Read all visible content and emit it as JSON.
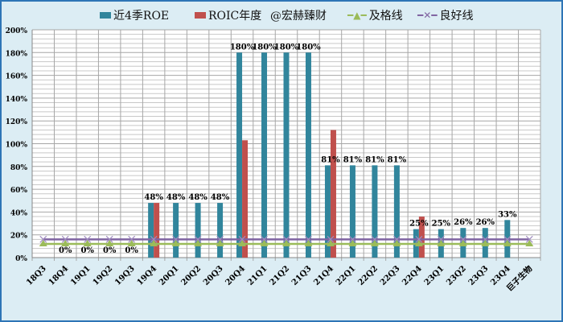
{
  "chart_data": {
    "type": "bar",
    "categories": [
      "18Q3",
      "18Q4",
      "19Q1",
      "19Q2",
      "19Q3",
      "19Q4",
      "20Q1",
      "20Q2",
      "20Q3",
      "20Q4",
      "21Q1",
      "21Q2",
      "21Q3",
      "21Q4",
      "22Q1",
      "22Q2",
      "22Q3",
      "22Q4",
      "23Q1",
      "23Q2",
      "23Q3",
      "23Q4",
      "巨子生物"
    ],
    "series": [
      {
        "name": "近4季ROE",
        "kind": "bar",
        "color": "#31859c",
        "values": [
          null,
          0,
          0,
          0,
          0,
          48,
          48,
          48,
          48,
          180,
          180,
          180,
          180,
          81,
          81,
          81,
          81,
          25,
          25,
          26,
          26,
          33,
          null
        ],
        "labels": [
          "",
          "0%",
          "0%",
          "0%",
          "0%",
          "48%",
          "48%",
          "48%",
          "48%",
          "180%",
          "180%",
          "180%",
          "180%",
          "81%",
          "81%",
          "81%",
          "81%",
          "25%",
          "25%",
          "26%",
          "26%",
          "33%",
          ""
        ]
      },
      {
        "name": "ROIC年度",
        "kind": "bar",
        "color": "#c0504d",
        "values": [
          null,
          null,
          null,
          null,
          null,
          48,
          null,
          null,
          null,
          103,
          null,
          null,
          null,
          112,
          null,
          null,
          null,
          36,
          null,
          null,
          null,
          null,
          null
        ]
      },
      {
        "name": "及格线",
        "kind": "line",
        "color": "#9bbb59",
        "marker": "triangle",
        "values": [
          12,
          12,
          12,
          12,
          12,
          12,
          12,
          12,
          12,
          12,
          12,
          12,
          12,
          12,
          12,
          12,
          12,
          12,
          12,
          12,
          12,
          12,
          12
        ]
      },
      {
        "name": "良好线",
        "kind": "line",
        "color": "#8064a2",
        "marker": "x",
        "values": [
          16,
          16,
          16,
          16,
          16,
          16,
          16,
          16,
          16,
          16,
          16,
          16,
          16,
          16,
          16,
          16,
          16,
          16,
          16,
          16,
          16,
          16,
          16
        ]
      }
    ],
    "watermark": "@宏赫臻财",
    "y_ticks": [
      "0%",
      "20%",
      "40%",
      "60%",
      "80%",
      "100%",
      "120%",
      "140%",
      "160%",
      "180%",
      "200%"
    ],
    "ylim": [
      0,
      200
    ],
    "grid": true,
    "legend": "top"
  }
}
